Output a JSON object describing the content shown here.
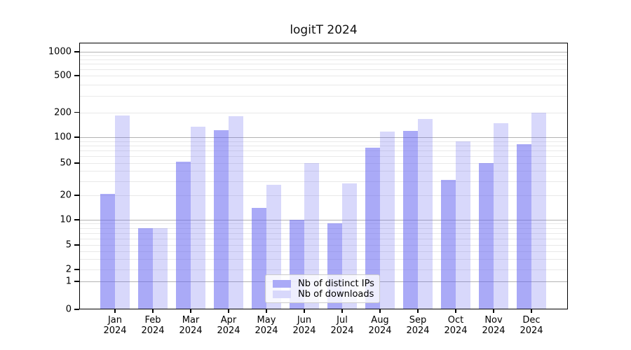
{
  "title": "logitT 2024",
  "colors": {
    "bar_ips": "rgba(100,100,240,0.55)",
    "bar_downloads": "rgba(100,100,240,0.25)",
    "bar_ips_solid": "#aaaaf7",
    "bar_downloads_solid": "#d8d8fb",
    "major_grid": "#b3b3b3",
    "minor_grid": "#e9e9e9",
    "axis": "#000000"
  },
  "legend": {
    "position": "lower center",
    "items": [
      {
        "label": "Nb of distinct IPs"
      },
      {
        "label": "Nb of downloads"
      }
    ]
  },
  "chart_data": {
    "type": "bar",
    "title": "logitT 2024",
    "categories": [
      "Jan 2024",
      "Feb 2024",
      "Mar 2024",
      "Apr 2024",
      "May 2024",
      "Jun 2024",
      "Jul 2024",
      "Aug 2024",
      "Sep 2024",
      "Oct 2024",
      "Nov 2024",
      "Dec 2024"
    ],
    "series": [
      {
        "name": "Nb of distinct IPs",
        "values": [
          21,
          8,
          52,
          122,
          14,
          10,
          9,
          76,
          120,
          31,
          50,
          83
        ]
      },
      {
        "name": "Nb of downloads",
        "values": [
          183,
          8,
          134,
          179,
          27,
          50,
          28,
          116,
          165,
          90,
          148,
          199
        ]
      }
    ],
    "xlabel": "",
    "ylabel": "",
    "y_axis": {
      "scale": "logit-like (log with compressed region near 0)",
      "tick_values": [
        0,
        1,
        2,
        5,
        10,
        20,
        50,
        100,
        200,
        500,
        1000
      ],
      "tick_labels": [
        "0",
        "1",
        "2",
        "5",
        "10",
        "20",
        "50",
        "100",
        "200",
        "500",
        "1000"
      ],
      "major_gridlines_at": [
        1,
        10,
        100,
        1000
      ],
      "minor_gridlines_at": [
        2,
        3,
        4,
        5,
        6,
        7,
        8,
        9,
        20,
        30,
        40,
        50,
        60,
        70,
        80,
        90,
        200,
        300,
        400,
        500,
        600,
        700,
        800,
        900
      ]
    },
    "grid": true,
    "legend_position": "lower center"
  }
}
